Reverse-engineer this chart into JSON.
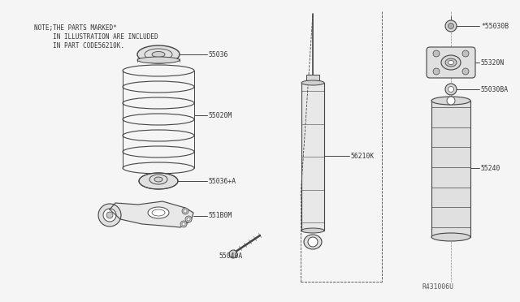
{
  "bg_color": "#f5f5f5",
  "line_color": "#444444",
  "text_color": "#333333",
  "label_color": "#333333",
  "note_text": [
    "NOTE;THE PARTS MARKED*",
    "     IN ILLUSTRATION ARE INCLUDED",
    "     IN PART CODE56210K."
  ],
  "font_size_note": 5.5,
  "font_size_label": 5.8,
  "font_size_ref": 5.8,
  "ref_code": "R431006U"
}
